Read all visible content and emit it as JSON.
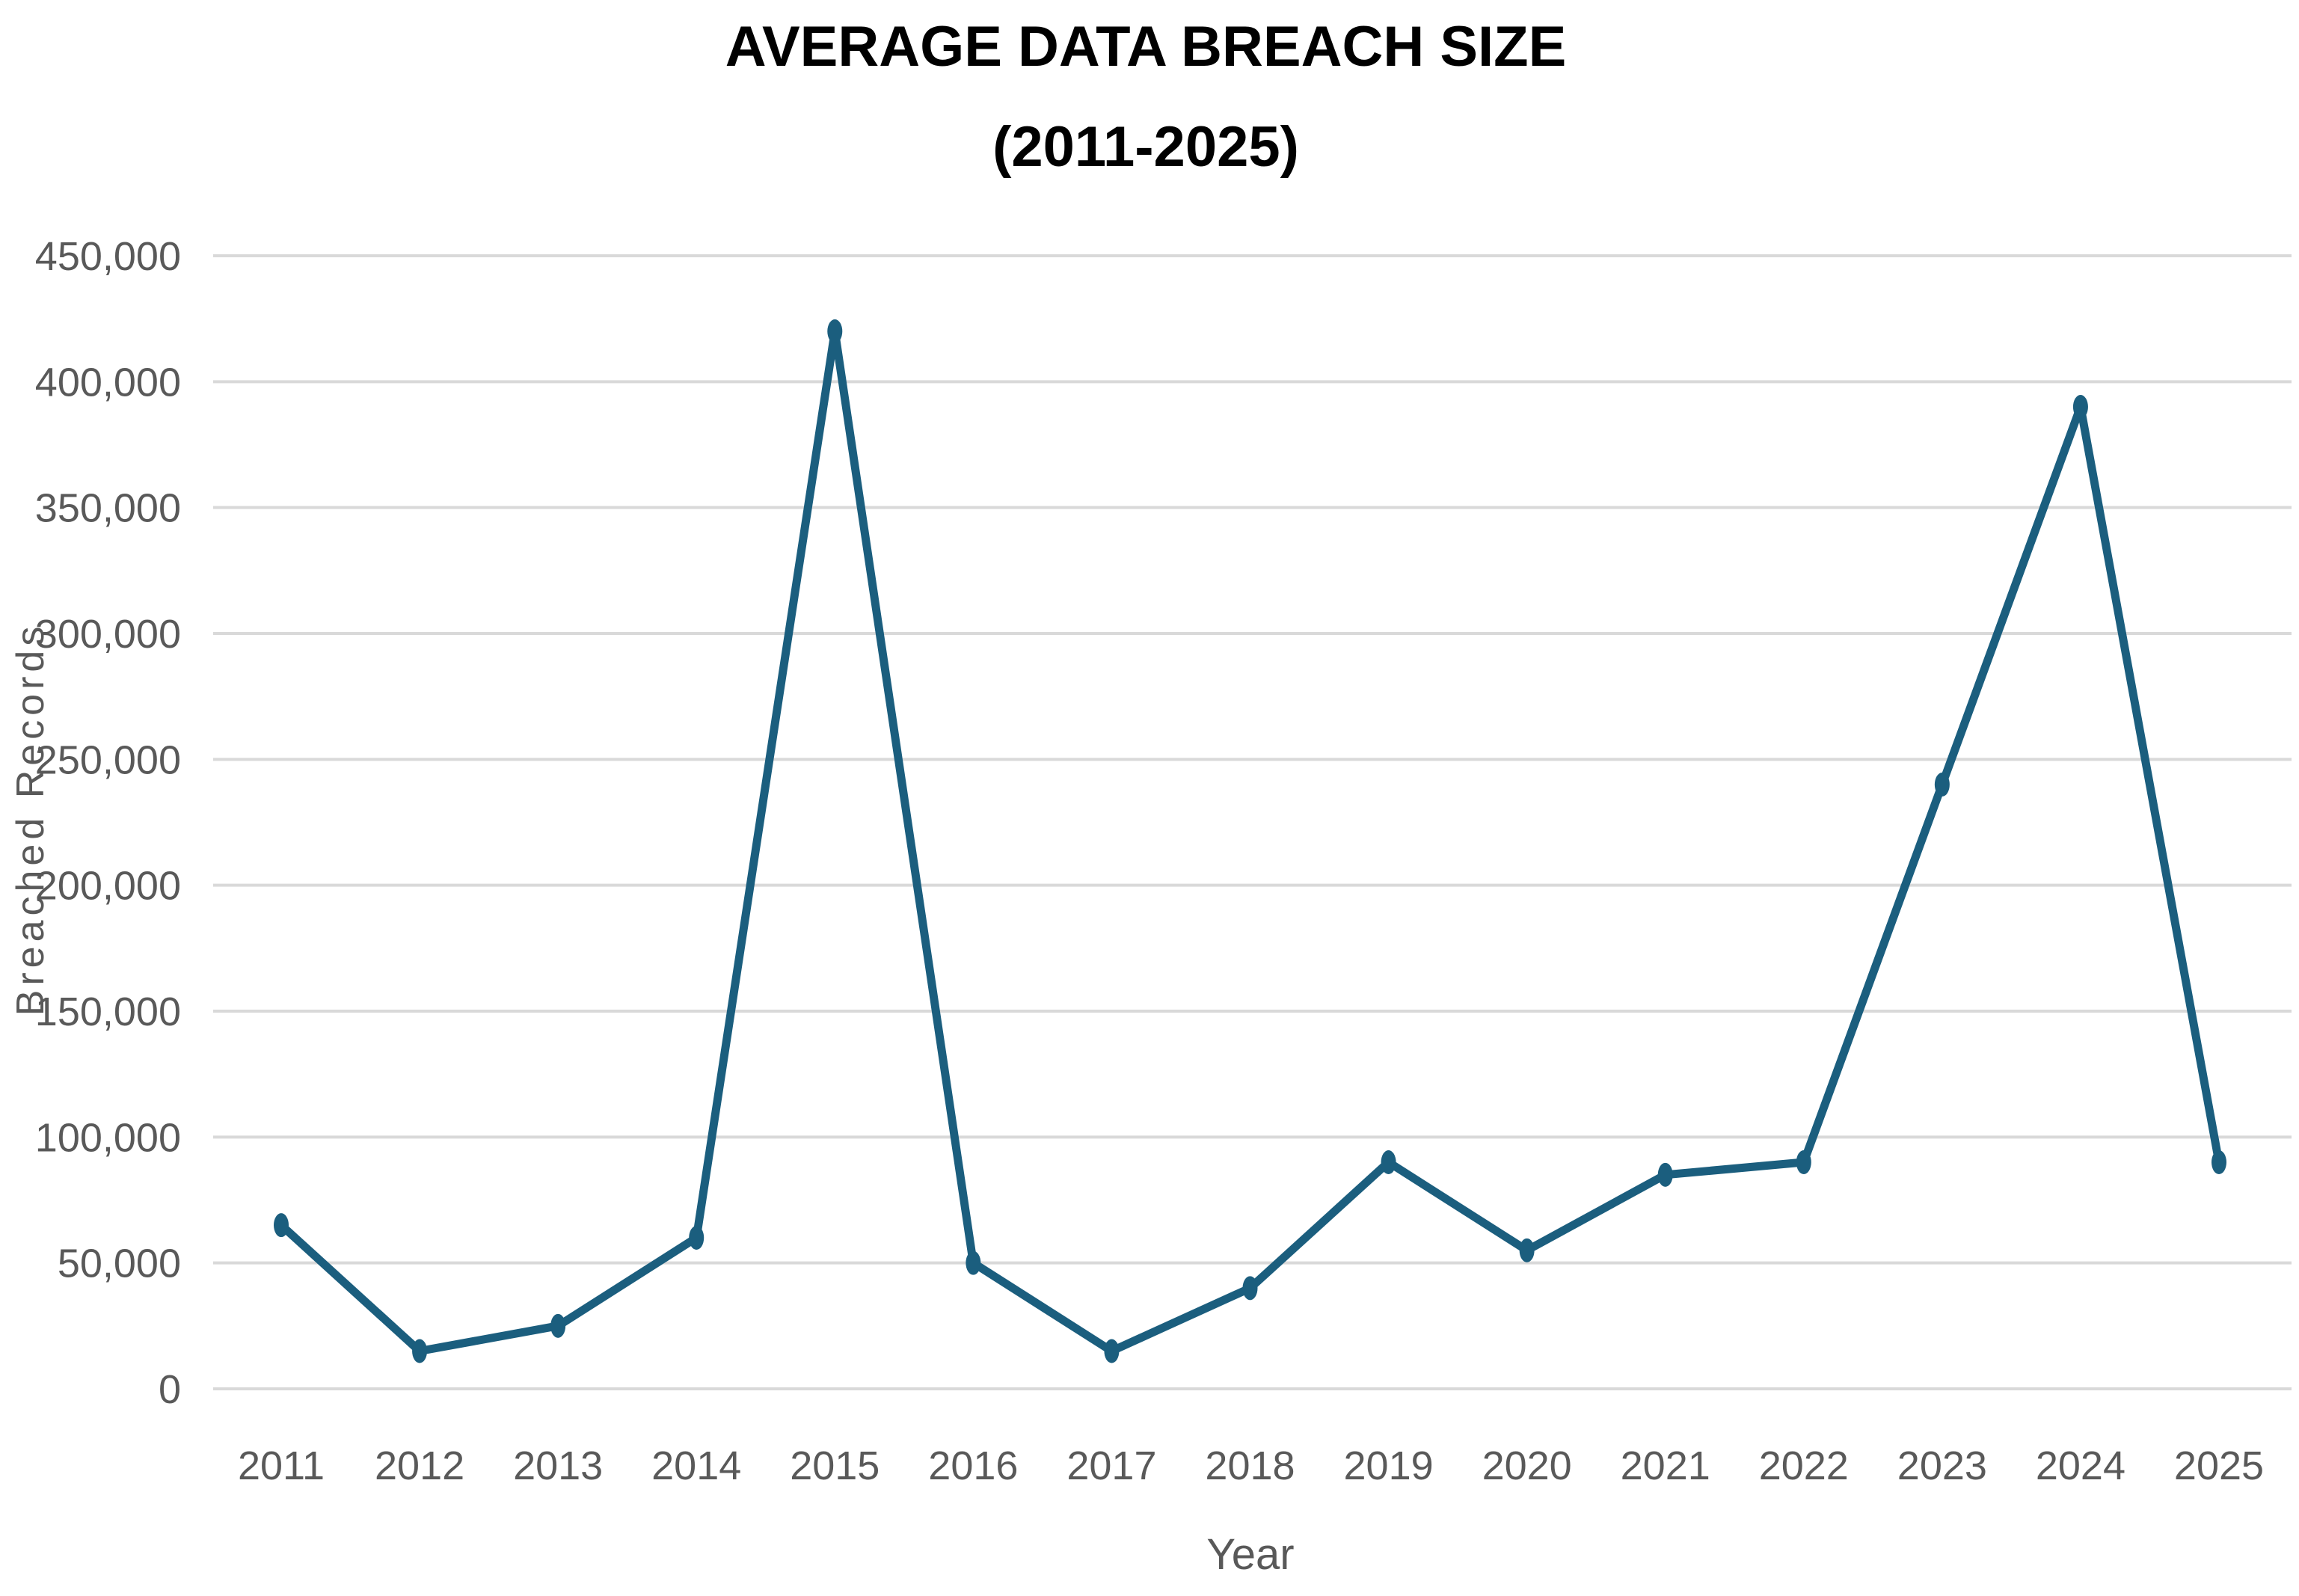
{
  "chart_data": {
    "type": "line",
    "title": "AVERAGE DATA BREACH SIZE",
    "subtitle": "(2011-2025)",
    "xlabel": "Year",
    "ylabel": "Breached  Records",
    "ylim": [
      0,
      450000
    ],
    "ytick_values": [
      0,
      50000,
      100000,
      150000,
      200000,
      250000,
      300000,
      350000,
      400000,
      450000
    ],
    "ytick_labels": [
      "0",
      "50,000",
      "100,000",
      "150,000",
      "200,000",
      "250,000",
      "300,000",
      "350,000",
      "400,000",
      "450,000"
    ],
    "grid": true,
    "legend": "none",
    "categories": [
      "2011",
      "2012",
      "2013",
      "2014",
      "2015",
      "2016",
      "2017",
      "2018",
      "2019",
      "2020",
      "2021",
      "2022",
      "2023",
      "2024",
      "2025"
    ],
    "series": [
      {
        "name": "Breached Records",
        "color": "#1b5e7e",
        "values": [
          65000,
          15000,
          25000,
          60000,
          420000,
          50000,
          15000,
          40000,
          90000,
          55000,
          85000,
          90000,
          240000,
          390000,
          90000
        ]
      }
    ]
  }
}
